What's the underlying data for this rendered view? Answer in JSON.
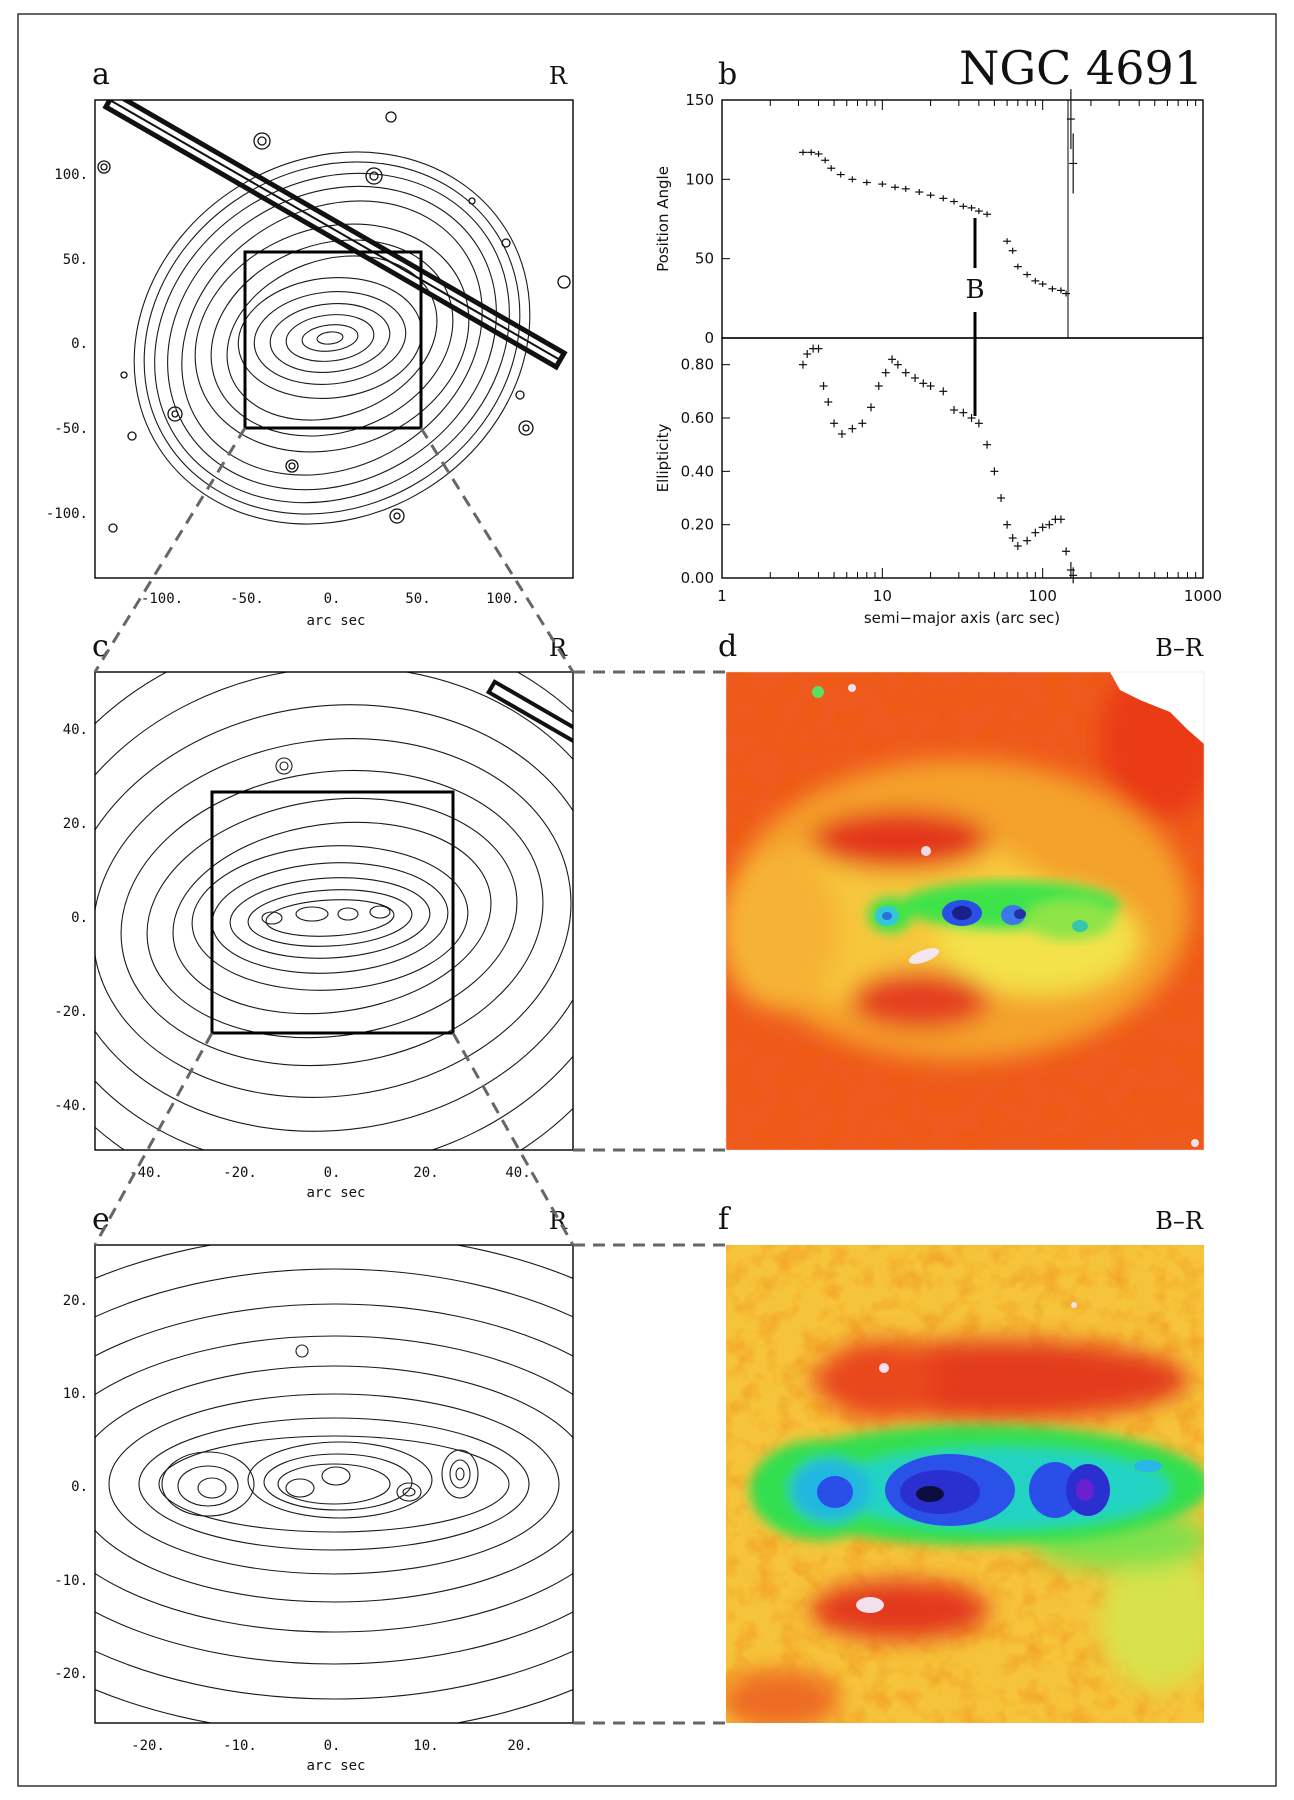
{
  "figure": {
    "title": "NGC 4691",
    "panels": {
      "a": {
        "letter": "a",
        "band": "R",
        "xlabel": "arc sec",
        "xticks": [
          "-100.",
          "-50.",
          "0.",
          "50.",
          "100."
        ],
        "yticks": [
          "100.",
          "50.",
          "0.",
          "-50.",
          "-100."
        ]
      },
      "b": {
        "letter": "b"
      },
      "c": {
        "letter": "c",
        "band": "R",
        "xlabel": "arc sec",
        "xticks": [
          "-40.",
          "-20.",
          "0.",
          "20.",
          "40."
        ],
        "yticks": [
          "40.",
          "20.",
          "0.",
          "-20.",
          "-40."
        ]
      },
      "d": {
        "letter": "d",
        "band": "B–R"
      },
      "e": {
        "letter": "e",
        "band": "R",
        "xlabel": "arc sec",
        "xticks": [
          "-20.",
          "-10.",
          "0.",
          "10.",
          "20."
        ],
        "yticks": [
          "20.",
          "10.",
          "0.",
          "-10.",
          "-20."
        ]
      },
      "f": {
        "letter": "f",
        "band": "B–R"
      }
    }
  },
  "chart_data": [
    {
      "type": "scatter",
      "panel": "b-top",
      "ylabel": "Position Angle",
      "ylim": [
        0,
        150
      ],
      "yticks": [
        "150",
        "100",
        "50",
        "0"
      ],
      "xscale": "log",
      "xlim": [
        1,
        1000
      ],
      "annotation": "B",
      "series": [
        {
          "x": [
            3.2,
            3.6,
            4.0,
            4.4,
            4.8,
            5.5,
            6.5,
            8,
            10,
            12,
            14,
            17,
            20,
            24,
            28,
            32,
            36,
            40,
            45,
            60,
            65,
            70,
            80,
            90,
            100,
            115,
            130,
            140,
            150,
            155
          ],
          "y": [
            117,
            117,
            116,
            112,
            107,
            103,
            100,
            98,
            97,
            95,
            94,
            92,
            90,
            88,
            86,
            83,
            82,
            80,
            78,
            61,
            55,
            45,
            40,
            36,
            34,
            31,
            30,
            28,
            138,
            110
          ]
        }
      ]
    },
    {
      "type": "scatter",
      "panel": "b-bottom",
      "ylabel": "Ellipticity",
      "xlabel": "semi−major axis (arc sec)",
      "ylim": [
        0,
        0.9
      ],
      "yticks": [
        "0.80",
        "0.60",
        "0.40",
        "0.20",
        "0.00"
      ],
      "xscale": "log",
      "xlim": [
        1,
        1000
      ],
      "xticks": [
        "1",
        "10",
        "100",
        "1000"
      ],
      "series": [
        {
          "x": [
            3.2,
            3.4,
            3.7,
            4.0,
            4.3,
            4.6,
            5.0,
            5.6,
            6.5,
            7.5,
            8.5,
            9.5,
            10.5,
            11.5,
            12.5,
            14,
            16,
            18,
            20,
            24,
            28,
            32,
            36,
            40,
            45,
            50,
            55,
            60,
            65,
            70,
            80,
            90,
            100,
            110,
            120,
            130,
            140,
            150,
            155
          ],
          "y": [
            0.8,
            0.84,
            0.86,
            0.86,
            0.72,
            0.66,
            0.58,
            0.54,
            0.56,
            0.58,
            0.64,
            0.72,
            0.77,
            0.82,
            0.8,
            0.77,
            0.75,
            0.73,
            0.72,
            0.7,
            0.63,
            0.62,
            0.6,
            0.58,
            0.5,
            0.4,
            0.3,
            0.2,
            0.15,
            0.12,
            0.14,
            0.17,
            0.19,
            0.2,
            0.22,
            0.22,
            0.1,
            0.03,
            0.01
          ]
        }
      ]
    }
  ]
}
